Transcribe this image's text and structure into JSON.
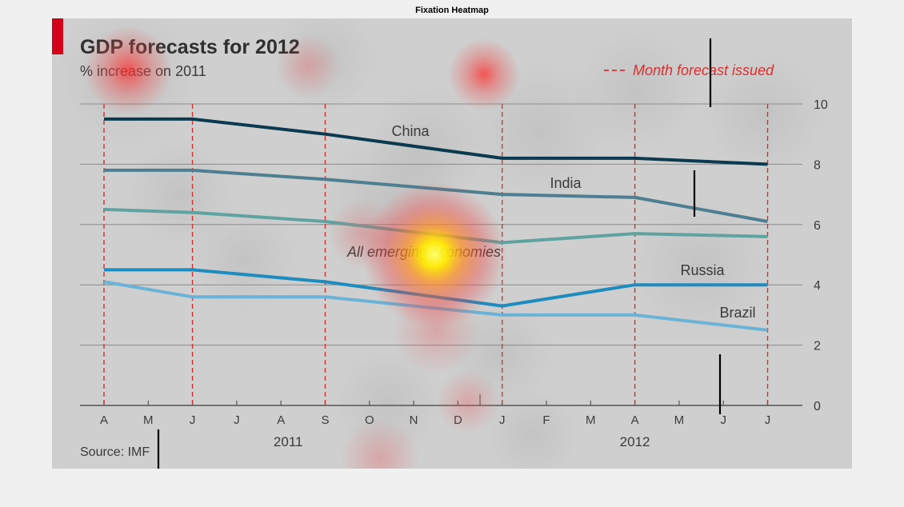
{
  "figure_title": "Fixation Heatmap",
  "chart_data": {
    "type": "line",
    "title": "GDP forecasts for 2012",
    "subtitle": "% increase on 2011",
    "legend": {
      "label": "Month forecast issued",
      "style": "dashed red vertical line",
      "placement": "top-right"
    },
    "source": "Source: IMF",
    "x_tick_labels": [
      "A",
      "M",
      "J",
      "J",
      "A",
      "S",
      "O",
      "N",
      "D",
      "J",
      "F",
      "M",
      "A",
      "M",
      "J",
      "J"
    ],
    "year_labels": [
      "2011",
      "2012"
    ],
    "forecast_months": [
      "2011-04",
      "2011-06",
      "2011-09",
      "2012-01",
      "2012-04",
      "2012-07"
    ],
    "ylim": [
      0,
      10
    ],
    "y_ticks": [
      "0",
      "2",
      "4",
      "6",
      "8",
      "10"
    ],
    "grid": true,
    "series": [
      {
        "name": "China",
        "color": "#0b3a4e",
        "values": [
          9.5,
          9.5,
          9.0,
          8.2,
          8.2,
          8.0
        ]
      },
      {
        "name": "India",
        "color": "#4d7f90",
        "values": [
          7.8,
          7.8,
          7.5,
          7.0,
          6.9,
          6.1
        ]
      },
      {
        "name": "All emerging economies",
        "color": "#5fa3a1",
        "values": [
          6.5,
          6.4,
          6.1,
          5.4,
          5.7,
          5.6
        ]
      },
      {
        "name": "Russia",
        "color": "#1f8cbf",
        "values": [
          4.5,
          4.5,
          4.1,
          3.3,
          4.0,
          4.0
        ]
      },
      {
        "name": "Brazil",
        "color": "#6ab3d6",
        "values": [
          4.1,
          3.6,
          3.6,
          3.0,
          3.0,
          2.5
        ]
      }
    ]
  }
}
